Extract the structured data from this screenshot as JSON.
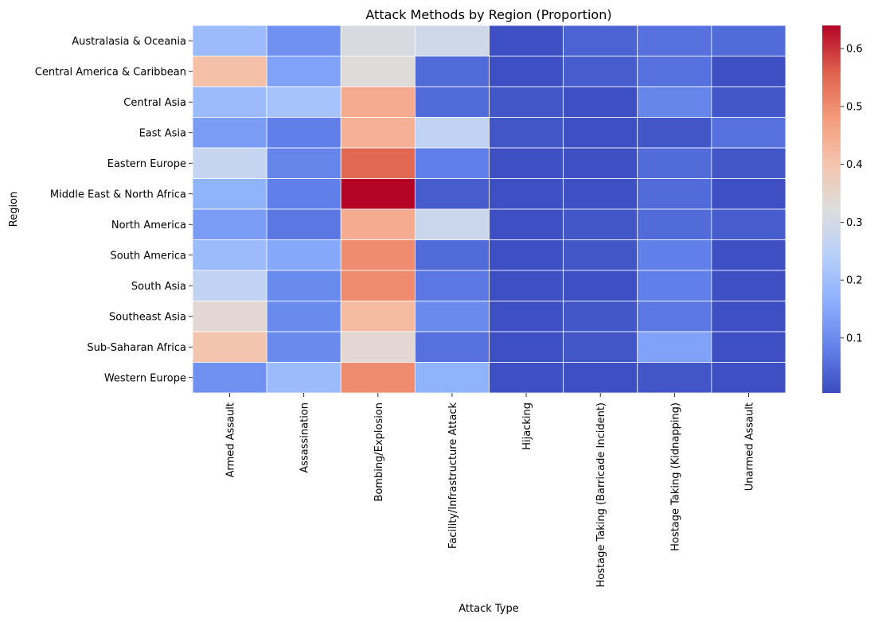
{
  "chart_data": {
    "type": "heatmap",
    "title": "Attack Methods by Region (Proportion)",
    "xlabel": "Attack Type",
    "ylabel": "Region",
    "x_categories": [
      "Armed Assault",
      "Assassination",
      "Bombing/Explosion",
      "Facility/Infrastructure Attack",
      "Hijacking",
      "Hostage Taking (Barricade Incident)",
      "Hostage Taking (Kidnapping)",
      "Unarmed Assault"
    ],
    "y_categories": [
      "Australasia & Oceania",
      "Central America & Caribbean",
      "Central Asia",
      "East Asia",
      "Eastern Europe",
      "Middle East & North Africa",
      "North America",
      "South America",
      "South Asia",
      "Southeast Asia",
      "Sub-Saharan Africa",
      "Western Europe"
    ],
    "values": [
      [
        0.19,
        0.11,
        0.31,
        0.29,
        0.01,
        0.04,
        0.06,
        0.05
      ],
      [
        0.41,
        0.14,
        0.33,
        0.05,
        0.01,
        0.03,
        0.06,
        0.01
      ],
      [
        0.19,
        0.21,
        0.45,
        0.05,
        0.02,
        0.01,
        0.09,
        0.02
      ],
      [
        0.13,
        0.08,
        0.44,
        0.26,
        0.02,
        0.01,
        0.02,
        0.06
      ],
      [
        0.27,
        0.09,
        0.55,
        0.08,
        0.01,
        0.01,
        0.05,
        0.02
      ],
      [
        0.17,
        0.08,
        0.64,
        0.03,
        0.01,
        0.01,
        0.05,
        0.01
      ],
      [
        0.13,
        0.07,
        0.45,
        0.28,
        0.01,
        0.02,
        0.05,
        0.03
      ],
      [
        0.19,
        0.15,
        0.5,
        0.05,
        0.01,
        0.02,
        0.08,
        0.01
      ],
      [
        0.26,
        0.1,
        0.5,
        0.07,
        0.01,
        0.01,
        0.08,
        0.01
      ],
      [
        0.34,
        0.1,
        0.42,
        0.1,
        0.01,
        0.02,
        0.07,
        0.01
      ],
      [
        0.4,
        0.1,
        0.34,
        0.06,
        0.01,
        0.02,
        0.14,
        0.01
      ],
      [
        0.11,
        0.19,
        0.5,
        0.17,
        0.01,
        0.01,
        0.02,
        0.01
      ]
    ],
    "vmin": 0.005,
    "vmax": 0.64,
    "colormap": "coolwarm",
    "colorbar_ticks": [
      0.1,
      0.2,
      0.3,
      0.4,
      0.5,
      0.6
    ],
    "colorbar_tick_labels": [
      "0.1",
      "0.2",
      "0.3",
      "0.4",
      "0.5",
      "0.6"
    ],
    "grid": false,
    "cell_border_color": "#ffffff"
  }
}
